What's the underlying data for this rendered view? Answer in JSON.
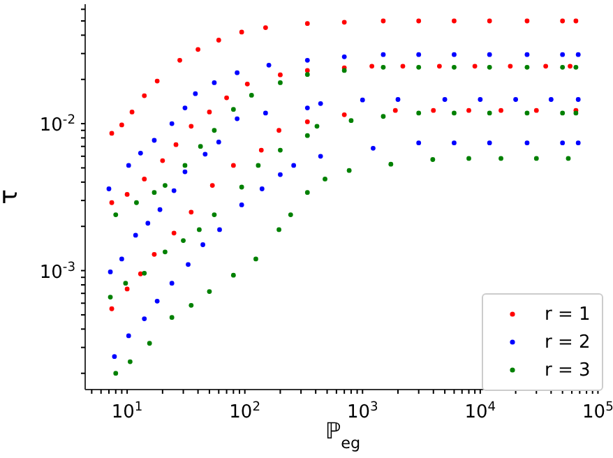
{
  "chart_data": {
    "type": "scatter",
    "xlabel": "ℙ$_{eg}$",
    "ylabel": "τ",
    "log": "xy",
    "grid": false,
    "legend": "bottom right",
    "marker": "circle",
    "xlim": [
      4.4,
      105000
    ],
    "ylim": [
      0.000155,
      0.065
    ],
    "xticks": [
      {
        "value": 5,
        "label": null
      },
      {
        "value": 6,
        "label": null
      },
      {
        "value": 7,
        "label": null
      },
      {
        "value": 8,
        "label": null
      },
      {
        "value": 9,
        "label": null
      },
      {
        "value": 10,
        "label": "10$^{1}$"
      },
      {
        "value": 20,
        "label": null
      },
      {
        "value": 30,
        "label": null
      },
      {
        "value": 40,
        "label": null
      },
      {
        "value": 50,
        "label": null
      },
      {
        "value": 60,
        "label": null
      },
      {
        "value": 70,
        "label": null
      },
      {
        "value": 80,
        "label": null
      },
      {
        "value": 90,
        "label": null
      },
      {
        "value": 100,
        "label": "10$^{2}$"
      },
      {
        "value": 200,
        "label": null
      },
      {
        "value": 300,
        "label": null
      },
      {
        "value": 400,
        "label": null
      },
      {
        "value": 500,
        "label": null
      },
      {
        "value": 600,
        "label": null
      },
      {
        "value": 700,
        "label": null
      },
      {
        "value": 800,
        "label": null
      },
      {
        "value": 900,
        "label": null
      },
      {
        "value": 1000,
        "label": "10$^{3}$"
      },
      {
        "value": 2000,
        "label": null
      },
      {
        "value": 3000,
        "label": null
      },
      {
        "value": 4000,
        "label": null
      },
      {
        "value": 5000,
        "label": null
      },
      {
        "value": 6000,
        "label": null
      },
      {
        "value": 7000,
        "label": null
      },
      {
        "value": 8000,
        "label": null
      },
      {
        "value": 9000,
        "label": null
      },
      {
        "value": 10000,
        "label": "10$^{4}$"
      },
      {
        "value": 20000,
        "label": null
      },
      {
        "value": 30000,
        "label": null
      },
      {
        "value": 40000,
        "label": null
      },
      {
        "value": 50000,
        "label": null
      },
      {
        "value": 60000,
        "label": null
      },
      {
        "value": 70000,
        "label": null
      },
      {
        "value": 80000,
        "label": null
      },
      {
        "value": 90000,
        "label": null
      },
      {
        "value": 100000,
        "label": "10$^{5}$"
      }
    ],
    "yticks": [
      {
        "value": 0.0002,
        "label": null
      },
      {
        "value": 0.0003,
        "label": null
      },
      {
        "value": 0.0004,
        "label": null
      },
      {
        "value": 0.0005,
        "label": null
      },
      {
        "value": 0.0006,
        "label": null
      },
      {
        "value": 0.0007,
        "label": null
      },
      {
        "value": 0.0008,
        "label": null
      },
      {
        "value": 0.0009,
        "label": null
      },
      {
        "value": 0.001,
        "label": "10$^{-3}$"
      },
      {
        "value": 0.002,
        "label": null
      },
      {
        "value": 0.003,
        "label": null
      },
      {
        "value": 0.004,
        "label": null
      },
      {
        "value": 0.005,
        "label": null
      },
      {
        "value": 0.006,
        "label": null
      },
      {
        "value": 0.007,
        "label": null
      },
      {
        "value": 0.008,
        "label": null
      },
      {
        "value": 0.009,
        "label": null
      },
      {
        "value": 0.01,
        "label": "10$^{-2}$"
      },
      {
        "value": 0.02,
        "label": null
      },
      {
        "value": 0.03,
        "label": null
      },
      {
        "value": 0.04,
        "label": null
      },
      {
        "value": 0.05,
        "label": null
      },
      {
        "value": 0.06,
        "label": null
      }
    ],
    "series": [
      {
        "name": "r = 1",
        "color": "#ff0000",
        "x": [
          7.4,
          9,
          11,
          14,
          18,
          28,
          40,
          60,
          94,
          150,
          340,
          700,
          1500,
          3000,
          6000,
          12000,
          25000,
          50000,
          65000,
          7.4,
          10,
          14,
          20,
          26,
          35,
          50,
          70,
          105,
          200,
          340,
          700,
          1200,
          2200,
          4500,
          9000,
          18000,
          36000,
          58000,
          7.4,
          10,
          13,
          17,
          25,
          35,
          53,
          80,
          138,
          195,
          340,
          700,
          1900,
          4000,
          8000,
          15000,
          30000,
          65000
        ],
        "values": [
          0.0086,
          0.0098,
          0.012,
          0.0155,
          0.0195,
          0.027,
          0.032,
          0.037,
          0.042,
          0.045,
          0.048,
          0.049,
          0.05,
          0.05,
          0.05,
          0.05,
          0.05,
          0.05,
          0.05,
          0.0029,
          0.0033,
          0.0042,
          0.0056,
          0.0072,
          0.0096,
          0.012,
          0.015,
          0.0186,
          0.0215,
          0.023,
          0.024,
          0.0246,
          0.0246,
          0.0246,
          0.0246,
          0.0246,
          0.0246,
          0.0246,
          0.00055,
          0.00075,
          0.00095,
          0.00129,
          0.0018,
          0.0025,
          0.0038,
          0.0052,
          0.0066,
          0.009,
          0.0103,
          0.0115,
          0.0123,
          0.0123,
          0.0123,
          0.0123,
          0.0123,
          0.0123
        ]
      },
      {
        "name": "r = 2",
        "color": "#0000ff",
        "x": [
          7,
          10.3,
          13,
          17,
          24,
          31,
          38,
          55,
          86,
          160,
          340,
          700,
          1500,
          3000,
          6000,
          12000,
          25000,
          50000,
          68000,
          7.2,
          9,
          11.8,
          15,
          19,
          25,
          31,
          46,
          60,
          86,
          150,
          340,
          440,
          1000,
          2000,
          5000,
          10000,
          20000,
          40000,
          68000,
          7.8,
          10.3,
          14,
          18,
          24,
          33,
          44,
          61,
          94,
          140,
          200,
          260,
          440,
          1230,
          3000,
          6000,
          12000,
          25000,
          50000,
          68000
        ],
        "values": [
          0.0036,
          0.0052,
          0.0063,
          0.0077,
          0.01,
          0.0128,
          0.016,
          0.019,
          0.0222,
          0.025,
          0.027,
          0.0285,
          0.0295,
          0.0295,
          0.0295,
          0.0295,
          0.0295,
          0.0295,
          0.0295,
          0.00098,
          0.0012,
          0.00174,
          0.0021,
          0.0026,
          0.0035,
          0.0047,
          0.0062,
          0.0075,
          0.0108,
          0.0118,
          0.0128,
          0.0137,
          0.0145,
          0.0146,
          0.0146,
          0.0146,
          0.0146,
          0.0146,
          0.0146,
          0.00026,
          0.00036,
          0.00047,
          0.00062,
          0.00082,
          0.0011,
          0.0015,
          0.0019,
          0.0028,
          0.0036,
          0.0045,
          0.0052,
          0.006,
          0.0068,
          0.0074,
          0.0074,
          0.0074,
          0.0074,
          0.0074,
          0.0074
        ]
      },
      {
        "name": "r = 3",
        "color": "#008000",
        "x": [
          8,
          12,
          17,
          21,
          31,
          42,
          55,
          80,
          114,
          200,
          340,
          700,
          1500,
          3000,
          6000,
          12000,
          25000,
          50000,
          65000,
          7.2,
          9.7,
          14,
          21,
          30,
          41,
          55,
          94,
          130,
          200,
          340,
          410,
          800,
          1500,
          3000,
          6000,
          12000,
          25000,
          50000,
          65000,
          8,
          10.6,
          15.5,
          24,
          35,
          50,
          80,
          124,
          195,
          245,
          340,
          480,
          770,
          1740,
          3950,
          8000,
          15000,
          30000,
          56000
        ],
        "values": [
          0.0024,
          0.0029,
          0.0034,
          0.0038,
          0.0052,
          0.007,
          0.009,
          0.0125,
          0.0156,
          0.019,
          0.0216,
          0.023,
          0.0242,
          0.0242,
          0.0242,
          0.0242,
          0.0242,
          0.0242,
          0.0242,
          0.00066,
          0.00082,
          0.00096,
          0.00134,
          0.0016,
          0.0019,
          0.0024,
          0.0037,
          0.0052,
          0.0066,
          0.0083,
          0.0096,
          0.0105,
          0.0112,
          0.0118,
          0.0118,
          0.0118,
          0.0118,
          0.0118,
          0.0118,
          0.0002,
          0.00024,
          0.00032,
          0.00048,
          0.00058,
          0.00072,
          0.00093,
          0.0012,
          0.0019,
          0.0024,
          0.0034,
          0.0042,
          0.0048,
          0.0053,
          0.0057,
          0.0058,
          0.0058,
          0.0058,
          0.0058
        ]
      }
    ]
  }
}
